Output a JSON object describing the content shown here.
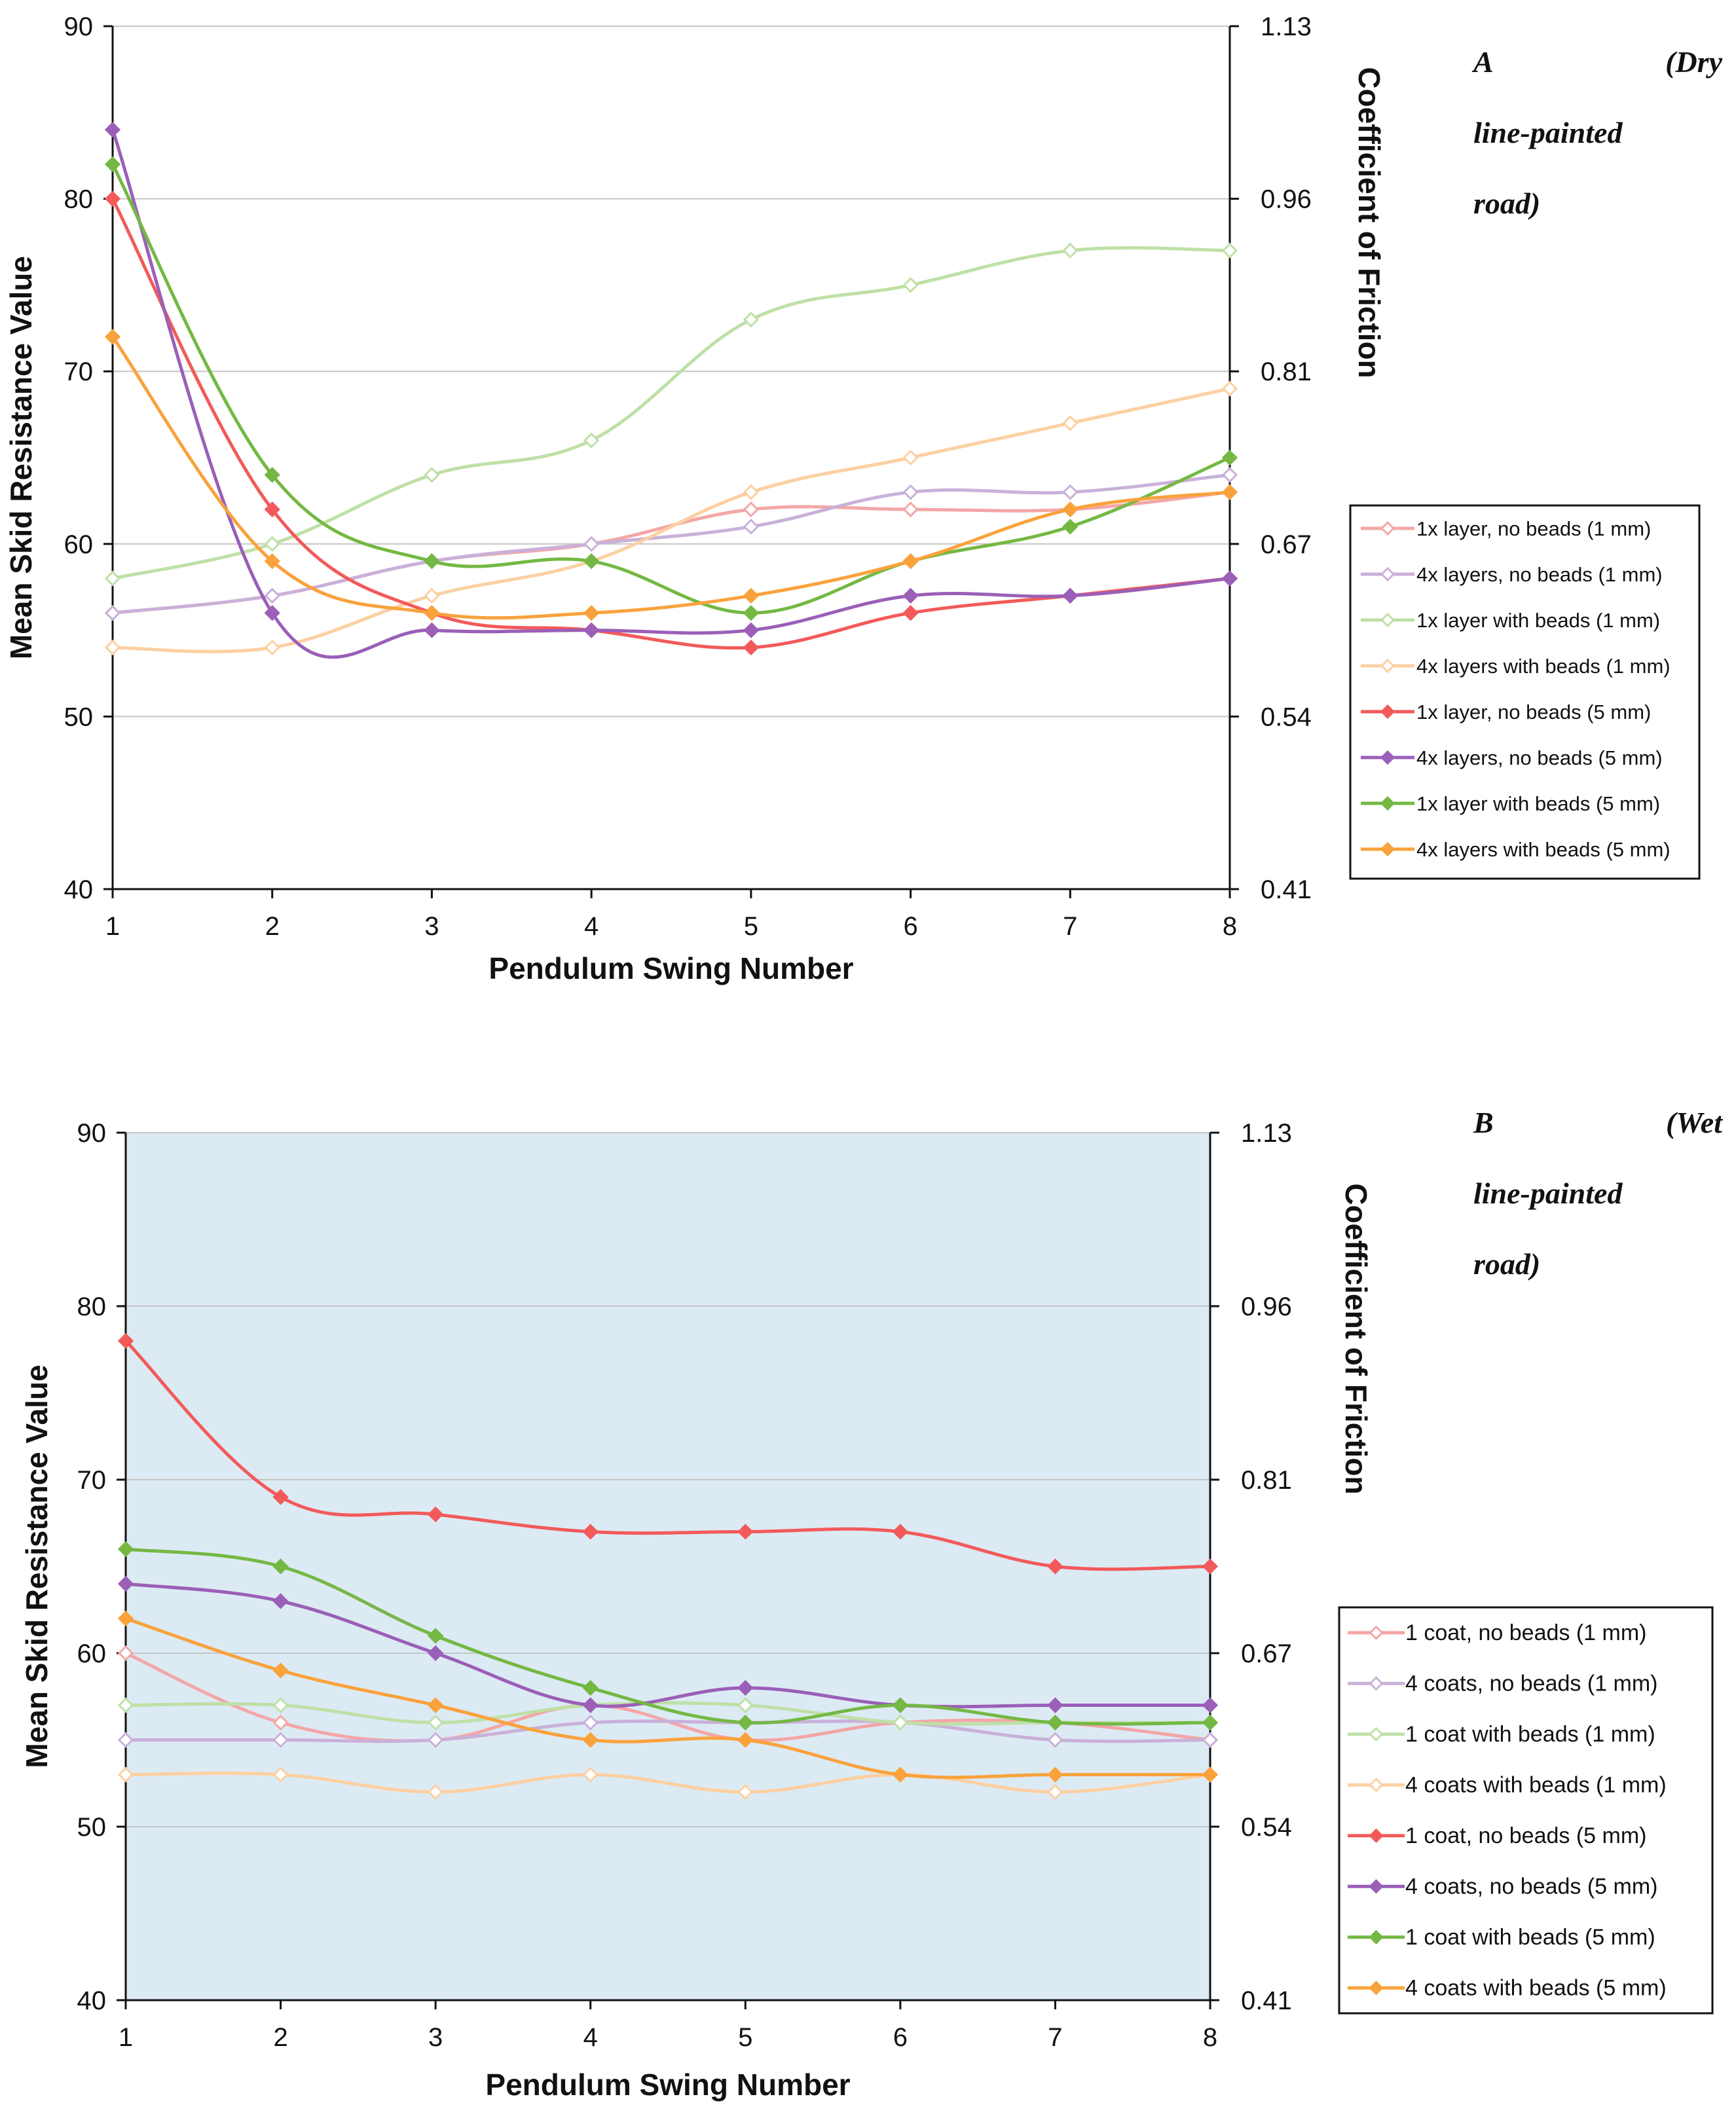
{
  "chart_data": [
    {
      "type": "line",
      "panel": "A",
      "label_parts": [
        "A",
        "(Dry",
        "line-painted",
        "road)"
      ],
      "xlabel": "Pendulum Swing Number",
      "ylabel": "Mean Skid Resistance Value",
      "y2label": "Coefficient of Friction",
      "x": [
        1,
        2,
        3,
        4,
        5,
        6,
        7,
        8
      ],
      "x_tick_labels": [
        "1",
        "2",
        "3",
        "4",
        "5",
        "6",
        "7",
        "8"
      ],
      "ylim": [
        40,
        90
      ],
      "y_ticks": [
        40,
        50,
        60,
        70,
        80,
        90
      ],
      "y_tick_labels": [
        "40",
        "50",
        "60",
        "70",
        "80",
        "90"
      ],
      "y2_tick_labels": [
        "0.41",
        "0.54",
        "0.67",
        "0.81",
        "0.96",
        "1.13"
      ],
      "grid": true,
      "background": "#ffffff",
      "legend_position": "right",
      "series": [
        {
          "name": "1x layer, no beads (1 mm)",
          "color": "#f4a6a6",
          "marker": "diamond-open",
          "values": [
            56,
            57,
            59,
            60,
            62,
            62,
            62,
            63
          ]
        },
        {
          "name": "4x layers, no beads (1 mm)",
          "color": "#c9b1d9",
          "marker": "diamond-open",
          "values": [
            56,
            57,
            59,
            60,
            61,
            63,
            63,
            64
          ]
        },
        {
          "name": "1x layer with beads (1 mm)",
          "color": "#bfe0a6",
          "marker": "diamond-open",
          "values": [
            58,
            60,
            64,
            66,
            73,
            75,
            77,
            77
          ]
        },
        {
          "name": "4x layers with beads (1 mm)",
          "color": "#fcd0a2",
          "marker": "diamond-open",
          "values": [
            54,
            54,
            57,
            59,
            63,
            65,
            67,
            69
          ]
        },
        {
          "name": "1x layer, no beads (5 mm)",
          "color": "#f25a5a",
          "marker": "diamond",
          "values": [
            80,
            62,
            56,
            55,
            54,
            56,
            57,
            58
          ]
        },
        {
          "name": "4x layers, no beads (5 mm)",
          "color": "#9b5fb8",
          "marker": "diamond",
          "values": [
            84,
            56,
            55,
            55,
            55,
            57,
            57,
            58
          ]
        },
        {
          "name": "1x layer with beads (5 mm)",
          "color": "#74b843",
          "marker": "diamond",
          "values": [
            82,
            64,
            59,
            59,
            56,
            59,
            61,
            65
          ]
        },
        {
          "name": "4x layers with beads (5 mm)",
          "color": "#f9a23c",
          "marker": "diamond",
          "values": [
            72,
            59,
            56,
            56,
            57,
            59,
            62,
            63
          ]
        }
      ]
    },
    {
      "type": "line",
      "panel": "B",
      "label_parts": [
        "B",
        "(Wet",
        "line-painted",
        "road)"
      ],
      "xlabel": "Pendulum Swing Number",
      "ylabel": "Mean Skid Resistance Value",
      "y2label": "Coefficient of Friction",
      "x": [
        1,
        2,
        3,
        4,
        5,
        6,
        7,
        8
      ],
      "x_tick_labels": [
        "1",
        "2",
        "3",
        "4",
        "5",
        "6",
        "7",
        "8"
      ],
      "ylim": [
        40,
        90
      ],
      "y_ticks": [
        40,
        50,
        60,
        70,
        80,
        90
      ],
      "y_tick_labels": [
        "40",
        "50",
        "60",
        "70",
        "80",
        "90"
      ],
      "y2_tick_labels": [
        "0.41",
        "0.54",
        "0.67",
        "0.81",
        "0.96",
        "1.13"
      ],
      "grid": true,
      "background": "#dceaf4",
      "legend_position": "right",
      "series": [
        {
          "name": "1 coat, no beads (1 mm)",
          "color": "#f4a6a6",
          "marker": "diamond-open",
          "values": [
            60,
            56,
            55,
            57,
            55,
            56,
            56,
            55
          ]
        },
        {
          "name": "4 coats, no beads (1 mm)",
          "color": "#c9b1d9",
          "marker": "diamond-open",
          "values": [
            55,
            55,
            55,
            56,
            56,
            56,
            55,
            55
          ]
        },
        {
          "name": "1 coat with beads (1 mm)",
          "color": "#bfe0a6",
          "marker": "diamond-open",
          "values": [
            57,
            57,
            56,
            57,
            57,
            56,
            56,
            56
          ]
        },
        {
          "name": "4 coats with beads (1 mm)",
          "color": "#fcd0a2",
          "marker": "diamond-open",
          "values": [
            53,
            53,
            52,
            53,
            52,
            53,
            52,
            53
          ]
        },
        {
          "name": "1 coat, no beads (5 mm)",
          "color": "#f25a5a",
          "marker": "diamond",
          "values": [
            78,
            69,
            68,
            67,
            67,
            67,
            65,
            65
          ]
        },
        {
          "name": "4 coats, no beads (5 mm)",
          "color": "#9b5fb8",
          "marker": "diamond",
          "values": [
            64,
            63,
            60,
            57,
            58,
            57,
            57,
            57
          ]
        },
        {
          "name": "1 coat with beads (5 mm)",
          "color": "#74b843",
          "marker": "diamond",
          "values": [
            66,
            65,
            61,
            58,
            56,
            57,
            56,
            56
          ]
        },
        {
          "name": "4 coats with beads (5 mm)",
          "color": "#f9a23c",
          "marker": "diamond",
          "values": [
            62,
            59,
            57,
            55,
            55,
            53,
            53,
            53
          ]
        }
      ]
    }
  ]
}
